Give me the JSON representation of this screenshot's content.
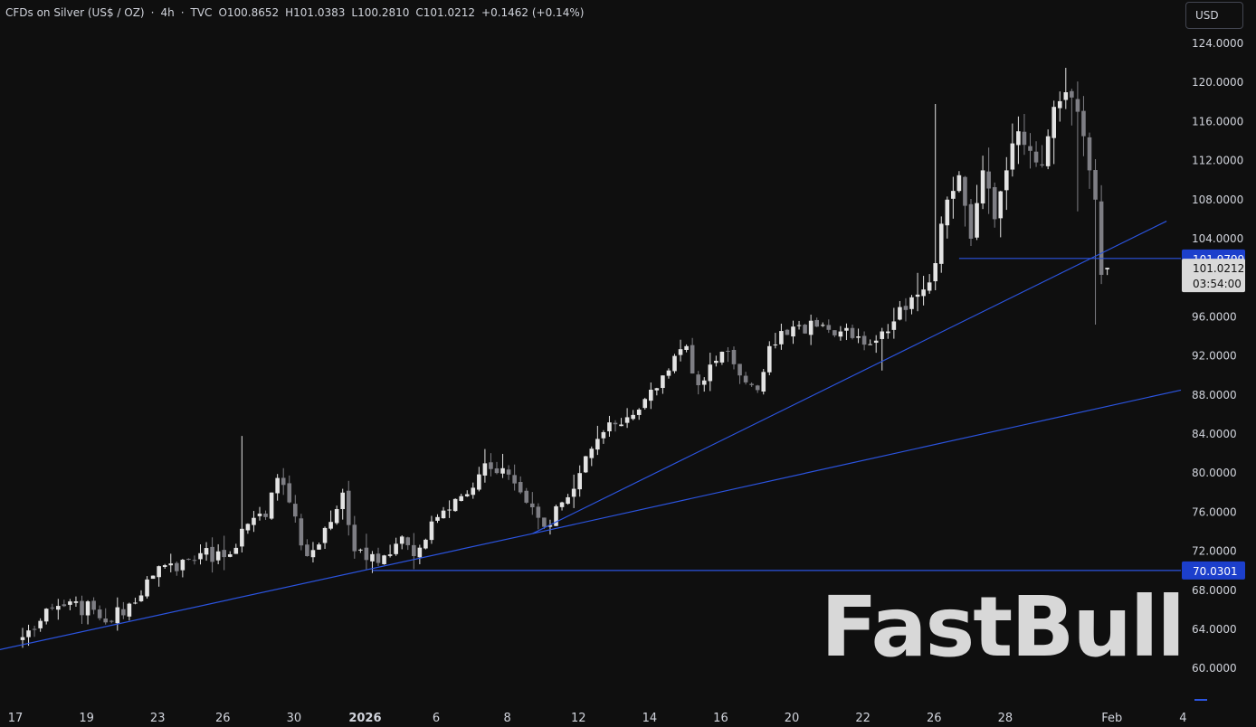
{
  "legend": {
    "symbol": "CFDs on Silver (US$ / OZ)",
    "interval": "4h",
    "source": "TVC",
    "open": "O100.8652",
    "high": "H101.0383",
    "low": "L100.2810",
    "close": "C101.0212",
    "change": "+0.1462 (+0.14%)"
  },
  "currency": "USD",
  "watermark": "FastBull",
  "colors": {
    "background": "#0f0f0f",
    "up": "#e3e3e3",
    "down": "#7e7e84",
    "line": "#2b54e0",
    "label": "#1c3fcc",
    "text": "#d1d4dc"
  },
  "chart_data": {
    "type": "candlestick",
    "y_ticks": [
      "124.0000",
      "120.0000",
      "116.0000",
      "112.0000",
      "108.0000",
      "104.0000",
      "100.0000",
      "96.0000",
      "92.0000",
      "88.0000",
      "84.0000",
      "80.0000",
      "76.0000",
      "72.0000",
      "68.0000",
      "64.0000",
      "60.0000"
    ],
    "x_ticks": [
      {
        "label": "17",
        "idx": 0,
        "bold": false
      },
      {
        "label": "19",
        "idx": 12,
        "bold": false
      },
      {
        "label": "23",
        "idx": 24,
        "bold": false
      },
      {
        "label": "26",
        "idx": 35,
        "bold": false
      },
      {
        "label": "30",
        "idx": 47,
        "bold": false
      },
      {
        "label": "2026",
        "idx": 59,
        "bold": true
      },
      {
        "label": "6",
        "idx": 71,
        "bold": false
      },
      {
        "label": "8",
        "idx": 83,
        "bold": false
      },
      {
        "label": "12",
        "idx": 95,
        "bold": false
      },
      {
        "label": "14",
        "idx": 107,
        "bold": false
      },
      {
        "label": "16",
        "idx": 119,
        "bold": false
      },
      {
        "label": "20",
        "idx": 131,
        "bold": false
      },
      {
        "label": "22",
        "idx": 143,
        "bold": false
      },
      {
        "label": "26",
        "idx": 155,
        "bold": false
      },
      {
        "label": "28",
        "idx": 167,
        "bold": false
      },
      {
        "label": "Feb",
        "idx": 185,
        "bold": false
      },
      {
        "label": "4",
        "idx": 197,
        "bold": false
      }
    ],
    "anchors": [
      [
        0,
        63.2
      ],
      [
        6,
        66.4
      ],
      [
        12,
        66.0
      ],
      [
        15,
        64.8
      ],
      [
        22,
        69.5
      ],
      [
        30,
        71.8
      ],
      [
        34,
        71.4
      ],
      [
        38,
        74.8
      ],
      [
        41,
        75.5
      ],
      [
        43,
        79.5
      ],
      [
        45,
        77
      ],
      [
        48,
        71.5
      ],
      [
        52,
        75
      ],
      [
        54,
        78
      ],
      [
        56,
        72
      ],
      [
        60,
        70.8
      ],
      [
        64,
        73.5
      ],
      [
        66,
        71.5
      ],
      [
        70,
        75.5
      ],
      [
        76,
        78.5
      ],
      [
        78,
        81
      ],
      [
        81,
        80.5
      ],
      [
        86,
        76.5
      ],
      [
        88,
        74.5
      ],
      [
        91,
        77
      ],
      [
        94,
        80
      ],
      [
        97,
        83.5
      ],
      [
        100,
        85
      ],
      [
        104,
        86.5
      ],
      [
        108,
        90
      ],
      [
        110,
        92
      ],
      [
        112,
        93
      ],
      [
        114,
        89
      ],
      [
        117,
        91.5
      ],
      [
        119,
        92.5
      ],
      [
        121,
        90
      ],
      [
        124,
        88.5
      ],
      [
        126,
        93
      ],
      [
        130,
        95
      ],
      [
        134,
        95
      ],
      [
        138,
        94.5
      ],
      [
        141,
        94
      ],
      [
        143,
        93.2
      ],
      [
        146,
        94.5
      ],
      [
        148,
        97
      ],
      [
        150,
        98
      ],
      [
        152,
        98.8
      ],
      [
        154,
        101.5
      ],
      [
        156,
        108
      ],
      [
        158,
        110.5
      ],
      [
        160,
        104
      ],
      [
        162,
        111
      ],
      [
        164,
        106
      ],
      [
        166,
        111
      ],
      [
        168,
        115
      ],
      [
        170,
        113
      ],
      [
        172,
        111.5
      ],
      [
        174,
        117.5
      ],
      [
        176,
        119
      ],
      [
        178,
        117
      ],
      [
        179,
        114.5
      ],
      [
        180,
        111
      ],
      [
        181,
        108
      ],
      [
        182,
        100.3
      ],
      [
        183,
        101.0
      ]
    ],
    "series_range": {
      "min": 59,
      "max": 122
    },
    "trend_lines": [
      {
        "from": [
          -4,
          61.9
        ],
        "to": [
          86,
          73.8
        ]
      },
      {
        "from": [
          86,
          73.8
        ],
        "to": [
          193,
          105.8
        ]
      },
      {
        "from": [
          86,
          73.8
        ],
        "to": [
          200,
          88.5
        ]
      }
    ],
    "horizontal_lines": [
      {
        "value": 101.9799,
        "label": "101.9799",
        "from_idx": 158
      },
      {
        "value": 70.0301,
        "label": "70.0301",
        "from_idx": 59
      }
    ],
    "price_label": {
      "value": 101.0212,
      "price": "101.0212",
      "countdown": "03:54:00"
    }
  }
}
